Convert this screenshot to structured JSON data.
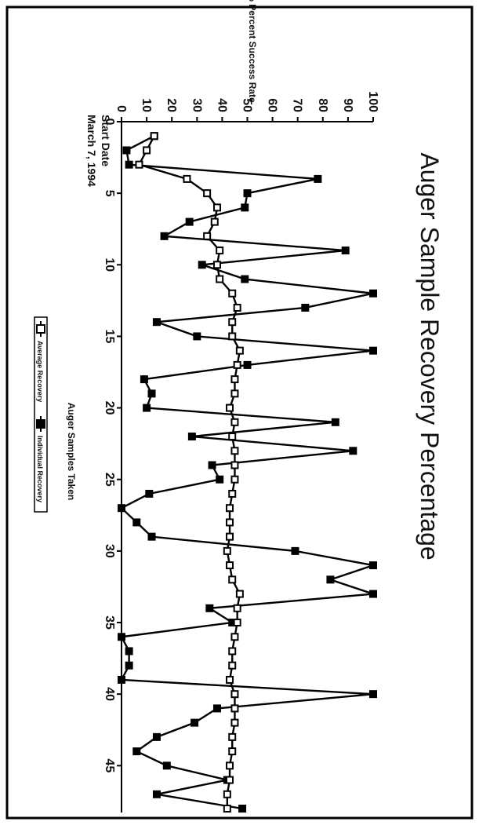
{
  "chart_data": {
    "type": "line",
    "title": "Auger Sample Recovery Percentage",
    "xlabel": "Auger Samples Taken",
    "ylabel": "% Percent Success Rate",
    "annotation": [
      "Start Date",
      "March 7, 1994"
    ],
    "xlim": [
      0,
      48
    ],
    "ylim": [
      0,
      100
    ],
    "x_ticks": [
      0,
      5,
      10,
      15,
      20,
      25,
      30,
      35,
      40,
      45
    ],
    "y_ticks": [
      0,
      10,
      20,
      30,
      40,
      50,
      60,
      70,
      80,
      90,
      100
    ],
    "legend_position": "bottom",
    "series": [
      {
        "name": "Average Recovery",
        "marker": "hollow-square",
        "points": [
          [
            1,
            13
          ],
          [
            2,
            10
          ],
          [
            3,
            7
          ],
          [
            4,
            26
          ],
          [
            5,
            34
          ],
          [
            6,
            38
          ],
          [
            7,
            37
          ],
          [
            8,
            34
          ],
          [
            9,
            39
          ],
          [
            10,
            38
          ],
          [
            11,
            39
          ],
          [
            12,
            44
          ],
          [
            13,
            46
          ],
          [
            14,
            44
          ],
          [
            15,
            44
          ],
          [
            16,
            47
          ],
          [
            17,
            46
          ],
          [
            18,
            45
          ],
          [
            19,
            45
          ],
          [
            20,
            43
          ],
          [
            21,
            45
          ],
          [
            22,
            44
          ],
          [
            23,
            45
          ],
          [
            24,
            45
          ],
          [
            25,
            45
          ],
          [
            26,
            44
          ],
          [
            27,
            43
          ],
          [
            28,
            43
          ],
          [
            29,
            43
          ],
          [
            30,
            42
          ],
          [
            31,
            43
          ],
          [
            32,
            44
          ],
          [
            33,
            47
          ],
          [
            34,
            46
          ],
          [
            35,
            46
          ],
          [
            36,
            45
          ],
          [
            37,
            44
          ],
          [
            38,
            44
          ],
          [
            39,
            43
          ],
          [
            40,
            45
          ],
          [
            41,
            45
          ],
          [
            42,
            45
          ],
          [
            43,
            44
          ],
          [
            44,
            44
          ],
          [
            45,
            43
          ],
          [
            46,
            43
          ],
          [
            47,
            42
          ],
          [
            48,
            42
          ]
        ]
      },
      {
        "name": "Individual Recovery",
        "marker": "filled-square",
        "points": [
          [
            1,
            13
          ],
          [
            2,
            2
          ],
          [
            3,
            3
          ],
          [
            4,
            78
          ],
          [
            5,
            50
          ],
          [
            6,
            49
          ],
          [
            7,
            27
          ],
          [
            8,
            17
          ],
          [
            9,
            89
          ],
          [
            10,
            32
          ],
          [
            11,
            49
          ],
          [
            12,
            100
          ],
          [
            13,
            73
          ],
          [
            14,
            14
          ],
          [
            15,
            30
          ],
          [
            16,
            100
          ],
          [
            17,
            50
          ],
          [
            18,
            9
          ],
          [
            19,
            12
          ],
          [
            20,
            10
          ],
          [
            21,
            85
          ],
          [
            22,
            28
          ],
          [
            23,
            92
          ],
          [
            24,
            36
          ],
          [
            25,
            39
          ],
          [
            26,
            11
          ],
          [
            27,
            0
          ],
          [
            28,
            6
          ],
          [
            29,
            12
          ],
          [
            30,
            69
          ],
          [
            31,
            100
          ],
          [
            32,
            83
          ],
          [
            33,
            100
          ],
          [
            34,
            35
          ],
          [
            35,
            44
          ],
          [
            36,
            0
          ],
          [
            37,
            3
          ],
          [
            38,
            3
          ],
          [
            39,
            0
          ],
          [
            40,
            100
          ],
          [
            41,
            38
          ],
          [
            42,
            29
          ],
          [
            43,
            14
          ],
          [
            44,
            6
          ],
          [
            45,
            18
          ],
          [
            46,
            42
          ],
          [
            47,
            14
          ],
          [
            48,
            48
          ]
        ]
      }
    ]
  }
}
